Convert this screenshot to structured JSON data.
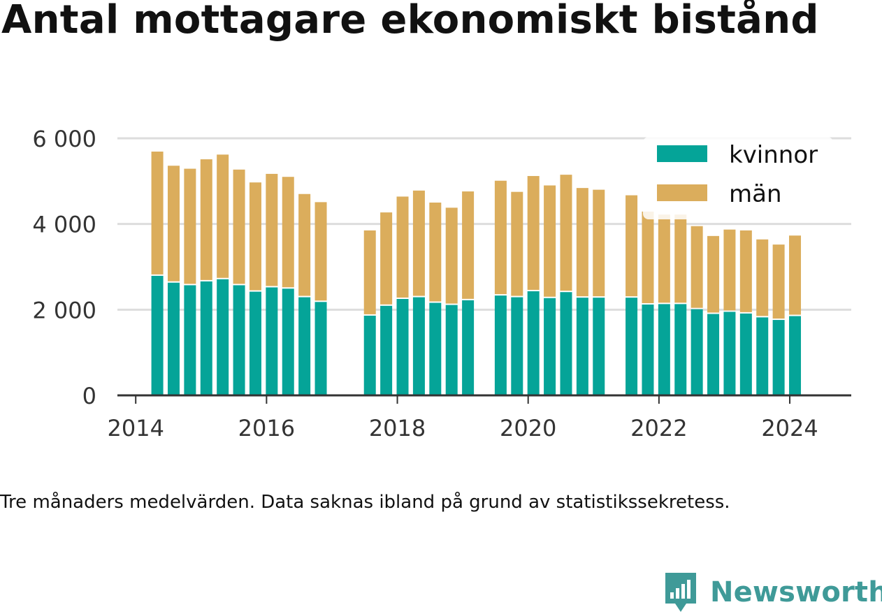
{
  "title": "Antal mottagare ekonomiskt bistånd",
  "note": "Tre månaders medelvärden. Data saknas ibland på grund av statistikssekretess.",
  "brand": "Newsworthy",
  "colors": {
    "kvinnor": "#05a498",
    "man": "#dbad5c",
    "grid": "#dddddd",
    "axis": "#333333",
    "brand": "#3f9a98"
  },
  "chart_data": {
    "type": "bar",
    "stacked": true,
    "x_unit": "year (quarterly bars)",
    "xlim": [
      2013.72,
      2024.94
    ],
    "ylim": [
      0,
      6000
    ],
    "xticks": [
      2014,
      2016,
      2018,
      2020,
      2022,
      2024
    ],
    "xtick_labels": [
      "2014",
      "2016",
      "2018",
      "2020",
      "2022",
      "2024"
    ],
    "yticks": [
      0,
      2000,
      4000,
      6000
    ],
    "ytick_labels": [
      "0",
      "2 000",
      "4 000",
      "6 000"
    ],
    "grid": true,
    "legend_position": "top-right",
    "x": [
      2014.33,
      2014.58,
      2014.83,
      2015.08,
      2015.33,
      2015.58,
      2015.83,
      2016.08,
      2016.33,
      2016.58,
      2016.83,
      2017.58,
      2017.83,
      2018.08,
      2018.33,
      2018.58,
      2018.83,
      2019.08,
      2019.58,
      2019.83,
      2020.08,
      2020.33,
      2020.58,
      2020.83,
      2021.08,
      2021.58,
      2021.83,
      2022.08,
      2022.33,
      2022.58,
      2022.83,
      2023.08,
      2023.33,
      2023.58,
      2023.83,
      2024.08
    ],
    "series": [
      {
        "name": "kvinnor",
        "values": [
          2790,
          2630,
          2570,
          2660,
          2710,
          2570,
          2420,
          2520,
          2490,
          2290,
          2180,
          1860,
          2090,
          2250,
          2290,
          2160,
          2110,
          2220,
          2330,
          2290,
          2430,
          2270,
          2410,
          2280,
          2280,
          2280,
          2120,
          2130,
          2130,
          2010,
          1900,
          1950,
          1910,
          1820,
          1760,
          1850
        ]
      },
      {
        "name": "män",
        "values": [
          2900,
          2730,
          2720,
          2850,
          2910,
          2700,
          2550,
          2650,
          2610,
          2410,
          2330,
          1990,
          2180,
          2390,
          2490,
          2340,
          2270,
          2540,
          2680,
          2460,
          2690,
          2630,
          2740,
          2560,
          2520,
          2390,
          2170,
          2090,
          2090,
          1940,
          1820,
          1920,
          1940,
          1820,
          1760,
          1880
        ]
      }
    ]
  }
}
